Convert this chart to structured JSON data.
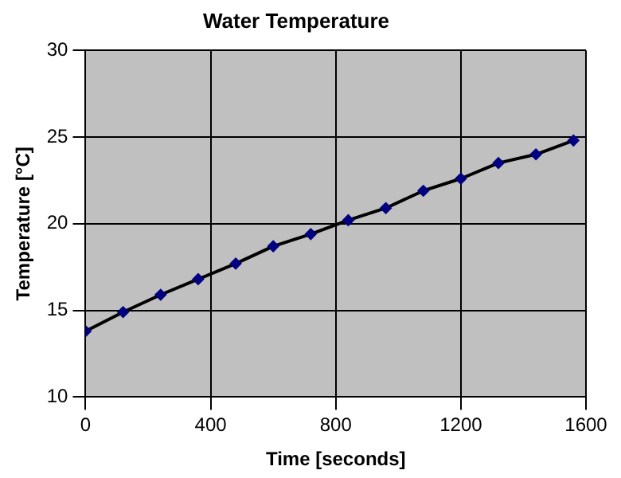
{
  "chart_data": {
    "type": "line",
    "title": "Water Temperature",
    "xlabel": "Time [seconds]",
    "ylabel": "Temperature [°C]",
    "x": [
      0,
      120,
      240,
      360,
      480,
      600,
      720,
      840,
      960,
      1080,
      1200,
      1320,
      1440,
      1560
    ],
    "series": [
      {
        "color": "#000080",
        "values": [
          13.8,
          14.9,
          15.9,
          16.8,
          17.7,
          18.7,
          19.4,
          20.2,
          20.9,
          21.9,
          22.6,
          23.5,
          24.0,
          24.8
        ]
      }
    ],
    "xlim": [
      0,
      1600
    ],
    "xticks": [
      0,
      400,
      800,
      1200,
      1600
    ],
    "ylim": [
      10,
      30
    ],
    "yticks": [
      10,
      15,
      20,
      25,
      30
    ],
    "grid": true,
    "legend": false,
    "marker": "diamond",
    "line_style": "solid"
  }
}
